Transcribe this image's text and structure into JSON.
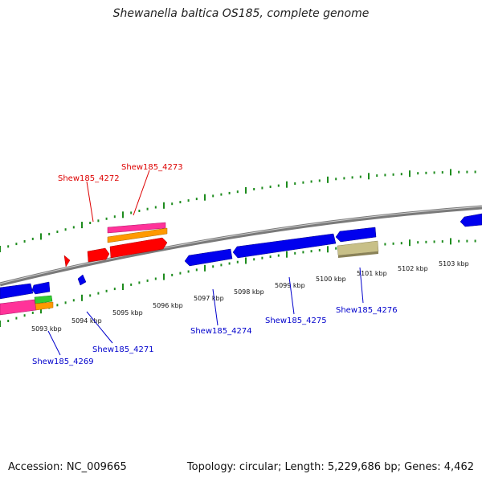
{
  "title": "Shewanella baltica OS185, complete genome",
  "footer": {
    "accession": "Accession: NC_009665",
    "summary": "Topology: circular; Length: 5,229,686 bp; Genes: 4,462"
  },
  "colors": {
    "backbone": "#8a8a8a",
    "tick": "#1e8c1e",
    "forward_label": "#dd0000",
    "reverse_label": "#0000cc",
    "forward_gene": "#ff0000",
    "reverse_gene": "#0000ee",
    "magenta": "#ff3399",
    "orange": "#ff9900",
    "green": "#33cc33",
    "khaki": "#c8c088"
  },
  "scale": {
    "labels": [
      "5093 kbp",
      "5094 kbp",
      "5095 kbp",
      "5096 kbp",
      "5097 kbp",
      "5098 kbp",
      "5099 kbp",
      "5100 kbp",
      "5101 kbp",
      "5102 kbp",
      "5103 kbp"
    ]
  },
  "gene_labels": {
    "forward": [
      "Shew185_4272",
      "Shew185_4273"
    ],
    "reverse": [
      "Shew185_4269",
      "Shew185_4271",
      "Shew185_4274",
      "Shew185_4275",
      "Shew185_4276"
    ]
  }
}
